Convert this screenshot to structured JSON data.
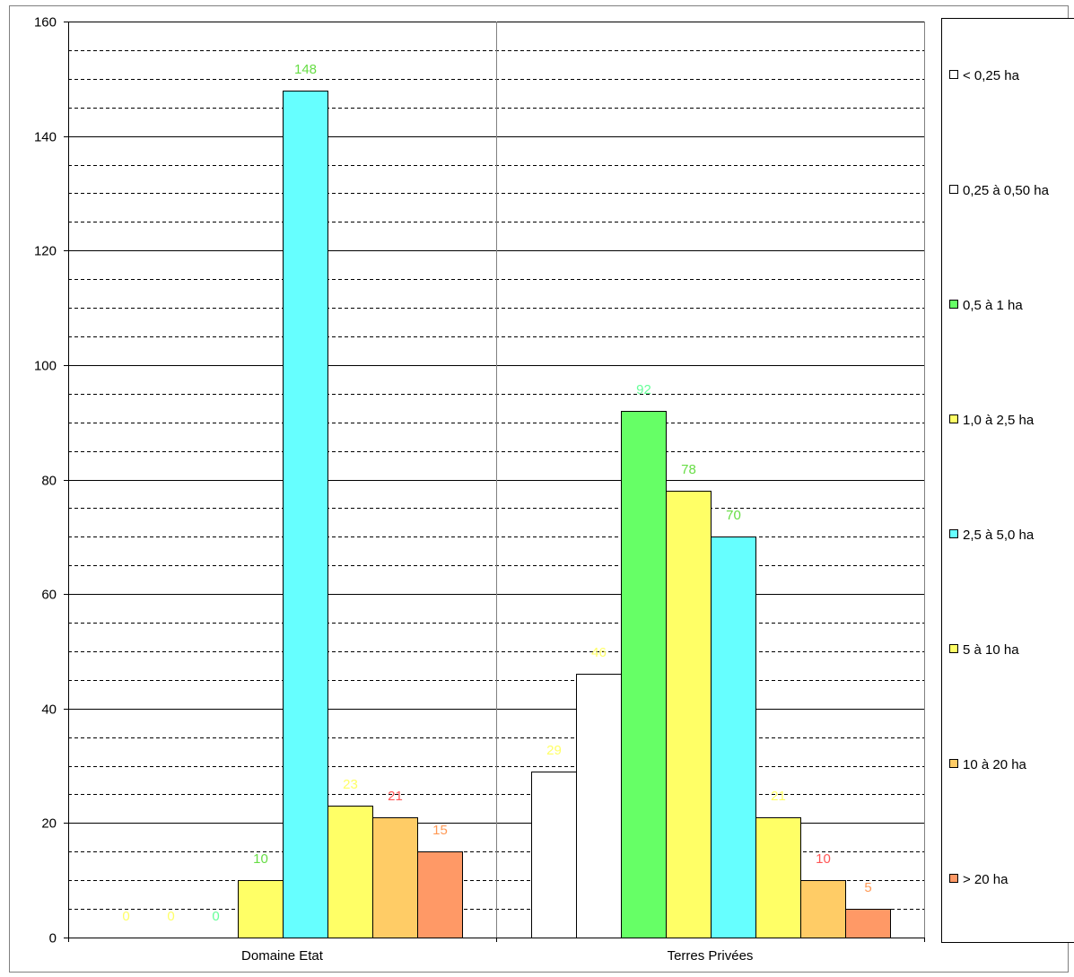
{
  "chart_data": {
    "type": "bar",
    "title": "",
    "xlabel": "",
    "ylabel": "",
    "ylim": [
      0,
      160
    ],
    "yticks": [
      "0",
      "20",
      "40",
      "60",
      "80",
      "100",
      "120",
      "140",
      "160"
    ],
    "grid": {
      "major": true,
      "minor_dashed": true
    },
    "legend_position": "right",
    "categories": [
      "Domaine Etat",
      "Terres Privées"
    ],
    "series": [
      {
        "name": "< 0,25 ha",
        "values": [
          0,
          29
        ],
        "color": "#ffffff",
        "label_color": "#ffff66",
        "labels": [
          "0",
          "29"
        ]
      },
      {
        "name": "0,25 à 0,50 ha",
        "values": [
          0,
          46
        ],
        "color": "#ffffff",
        "label_color": "#ffff66",
        "labels": [
          "0",
          "46"
        ]
      },
      {
        "name": "0,5 à 1 ha",
        "values": [
          0,
          92
        ],
        "color": "#66ff66",
        "label_color": "#66ff99",
        "labels": [
          "0",
          "92"
        ]
      },
      {
        "name": "1,0 à 2,5 ha",
        "values": [
          10,
          78
        ],
        "color": "#ffff66",
        "label_color": "#66dd44",
        "labels": [
          "10",
          "78"
        ]
      },
      {
        "name": "2,5 à 5,0 ha",
        "values": [
          148,
          70
        ],
        "color": "#66ffff",
        "label_color": "#66dd44",
        "labels": [
          "148",
          "70"
        ]
      },
      {
        "name": "5 à 10 ha",
        "values": [
          23,
          21
        ],
        "color": "#ffff66",
        "label_color": "#ffff66",
        "labels": [
          "23",
          "21"
        ]
      },
      {
        "name": "10 à 20 ha",
        "values": [
          21,
          10
        ],
        "color": "#ffcc66",
        "label_color": "#ff5555",
        "labels": [
          "21",
          "10"
        ]
      },
      {
        "name": "> 20 ha",
        "values": [
          15,
          5
        ],
        "color": "#ff9966",
        "label_color": "#ff9955",
        "labels": [
          "15",
          "5"
        ]
      }
    ]
  }
}
